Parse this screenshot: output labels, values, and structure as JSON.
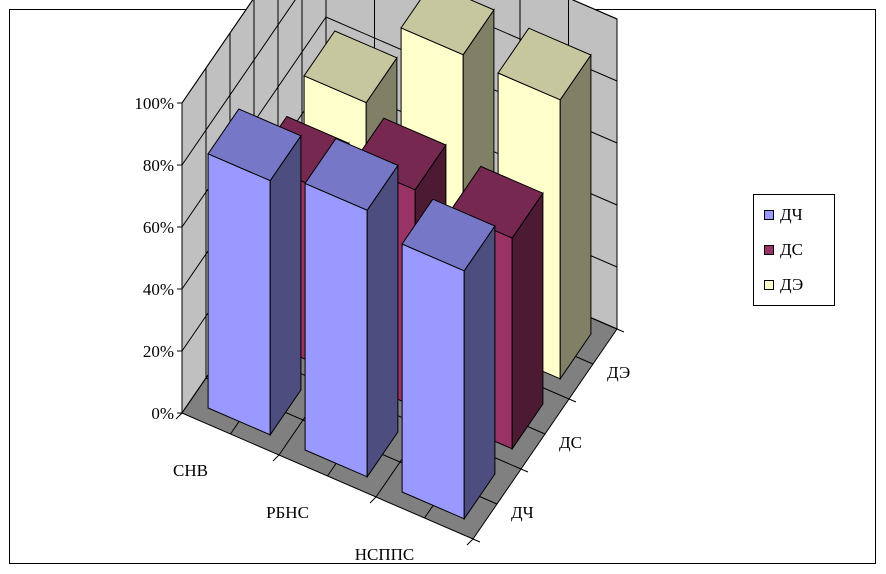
{
  "chart_data": {
    "type": "bar",
    "variant": "3d-column",
    "categories": [
      "СНВ",
      "РБНС",
      "НСППС"
    ],
    "series": [
      {
        "name": "ДЧ",
        "values": [
          82,
          86,
          80
        ],
        "color": "#9999ff"
      },
      {
        "name": "ДС",
        "values": [
          57,
          70,
          68
        ],
        "color": "#993366"
      },
      {
        "name": "ДЭ",
        "values": [
          62,
          91,
          90
        ],
        "color": "#ffffcc"
      }
    ],
    "depth_labels": [
      "ДЭ",
      "ДС",
      "ДЧ"
    ],
    "y_ticks": [
      "0%",
      "20%",
      "40%",
      "60%",
      "80%",
      "100%"
    ],
    "ylim": [
      0,
      100
    ],
    "y_unit": "%",
    "grid": true,
    "legend_position": "right",
    "wall_color": "#c0c0c0",
    "floor_color": "#808080"
  }
}
